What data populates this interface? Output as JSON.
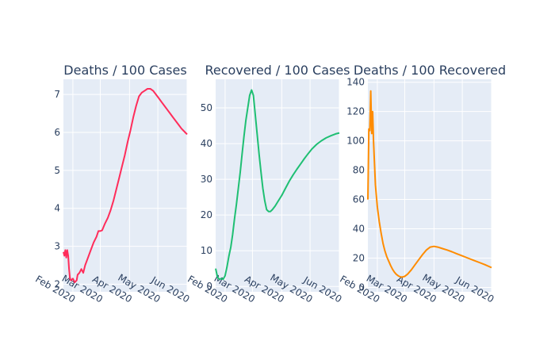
{
  "chart_data": [
    {
      "type": "line",
      "title": "Deaths / 100 Cases",
      "color": "#ff2c5a",
      "x_range": [
        "2020-01-22",
        "2020-06-01"
      ],
      "ylim": [
        1.8,
        7.4
      ],
      "y_ticks": [
        2,
        3,
        4,
        5,
        6,
        7
      ],
      "x_ticks": [
        "2020-02-01",
        "2020-03-01",
        "2020-04-01",
        "2020-05-01",
        "2020-06-01"
      ],
      "x_tick_labels": [
        "Feb 2020",
        "Mar 2020",
        "Apr 2020",
        "May 2020",
        "Jun 2020"
      ],
      "points": [
        [
          "2020-01-22",
          2.85
        ],
        [
          "2020-01-23",
          2.75
        ],
        [
          "2020-01-24",
          2.9
        ],
        [
          "2020-01-25",
          2.7
        ],
        [
          "2020-01-26",
          2.9
        ],
        [
          "2020-01-27",
          2.75
        ],
        [
          "2020-01-28",
          2.4
        ],
        [
          "2020-01-29",
          2.15
        ],
        [
          "2020-01-30",
          2.1
        ],
        [
          "2020-02-01",
          2.15
        ],
        [
          "2020-02-03",
          2.05
        ],
        [
          "2020-02-05",
          2.1
        ],
        [
          "2020-02-06",
          2.25
        ],
        [
          "2020-02-08",
          2.3
        ],
        [
          "2020-02-10",
          2.4
        ],
        [
          "2020-02-12",
          2.3
        ],
        [
          "2020-02-14",
          2.5
        ],
        [
          "2020-02-17",
          2.7
        ],
        [
          "2020-02-20",
          2.9
        ],
        [
          "2020-02-23",
          3.1
        ],
        [
          "2020-02-26",
          3.25
        ],
        [
          "2020-02-28",
          3.4
        ],
        [
          "2020-03-01",
          3.4
        ],
        [
          "2020-03-03",
          3.42
        ],
        [
          "2020-03-06",
          3.6
        ],
        [
          "2020-03-09",
          3.75
        ],
        [
          "2020-03-12",
          3.95
        ],
        [
          "2020-03-15",
          4.2
        ],
        [
          "2020-03-18",
          4.5
        ],
        [
          "2020-03-21",
          4.8
        ],
        [
          "2020-03-24",
          5.1
        ],
        [
          "2020-03-27",
          5.4
        ],
        [
          "2020-03-30",
          5.75
        ],
        [
          "2020-04-02",
          6.05
        ],
        [
          "2020-04-05",
          6.4
        ],
        [
          "2020-04-08",
          6.7
        ],
        [
          "2020-04-11",
          6.95
        ],
        [
          "2020-04-14",
          7.05
        ],
        [
          "2020-04-17",
          7.1
        ],
        [
          "2020-04-20",
          7.15
        ],
        [
          "2020-04-23",
          7.15
        ],
        [
          "2020-04-26",
          7.1
        ],
        [
          "2020-04-29",
          7.0
        ],
        [
          "2020-05-02",
          6.9
        ],
        [
          "2020-05-05",
          6.8
        ],
        [
          "2020-05-08",
          6.7
        ],
        [
          "2020-05-11",
          6.6
        ],
        [
          "2020-05-14",
          6.5
        ],
        [
          "2020-05-17",
          6.4
        ],
        [
          "2020-05-20",
          6.3
        ],
        [
          "2020-05-23",
          6.2
        ],
        [
          "2020-05-26",
          6.1
        ],
        [
          "2020-05-30",
          6.0
        ],
        [
          "2020-06-01",
          5.95
        ]
      ]
    },
    {
      "type": "line",
      "title": "Recovered / 100 Cases",
      "color": "#1fbf73",
      "x_range": [
        "2020-01-22",
        "2020-06-01"
      ],
      "ylim": [
        -1.5,
        58
      ],
      "y_ticks": [
        0,
        10,
        20,
        30,
        40,
        50
      ],
      "x_ticks": [
        "2020-02-01",
        "2020-03-01",
        "2020-04-01",
        "2020-05-01",
        "2020-06-01"
      ],
      "x_tick_labels": [
        "Feb 2020",
        "Mar 2020",
        "Apr 2020",
        "May 2020",
        "Jun 2020"
      ],
      "points": [
        [
          "2020-01-22",
          5.0
        ],
        [
          "2020-01-24",
          2.5
        ],
        [
          "2020-01-26",
          2.0
        ],
        [
          "2020-01-28",
          2.2
        ],
        [
          "2020-01-30",
          2.0
        ],
        [
          "2020-02-01",
          3.0
        ],
        [
          "2020-02-03",
          5.5
        ],
        [
          "2020-02-05",
          8.5
        ],
        [
          "2020-02-07",
          11.0
        ],
        [
          "2020-02-09",
          14.5
        ],
        [
          "2020-02-11",
          19.0
        ],
        [
          "2020-02-13",
          23.0
        ],
        [
          "2020-02-15",
          27.5
        ],
        [
          "2020-02-17",
          32.0
        ],
        [
          "2020-02-19",
          37.0
        ],
        [
          "2020-02-21",
          42.0
        ],
        [
          "2020-02-23",
          46.5
        ],
        [
          "2020-02-25",
          50.0
        ],
        [
          "2020-02-27",
          53.5
        ],
        [
          "2020-02-29",
          55.0
        ],
        [
          "2020-03-02",
          53.5
        ],
        [
          "2020-03-04",
          48.0
        ],
        [
          "2020-03-06",
          42.5
        ],
        [
          "2020-03-08",
          37.0
        ],
        [
          "2020-03-10",
          32.0
        ],
        [
          "2020-03-12",
          27.5
        ],
        [
          "2020-03-14",
          24.0
        ],
        [
          "2020-03-16",
          21.5
        ],
        [
          "2020-03-18",
          21.0
        ],
        [
          "2020-03-20",
          21.0
        ],
        [
          "2020-03-22",
          21.5
        ],
        [
          "2020-03-25",
          22.5
        ],
        [
          "2020-03-28",
          23.8
        ],
        [
          "2020-04-01",
          25.5
        ],
        [
          "2020-04-05",
          27.5
        ],
        [
          "2020-04-09",
          29.5
        ],
        [
          "2020-04-13",
          31.2
        ],
        [
          "2020-04-17",
          32.8
        ],
        [
          "2020-04-21",
          34.3
        ],
        [
          "2020-04-25",
          35.8
        ],
        [
          "2020-04-29",
          37.2
        ],
        [
          "2020-05-03",
          38.5
        ],
        [
          "2020-05-08",
          39.8
        ],
        [
          "2020-05-13",
          40.8
        ],
        [
          "2020-05-18",
          41.6
        ],
        [
          "2020-05-23",
          42.2
        ],
        [
          "2020-05-28",
          42.7
        ],
        [
          "2020-06-01",
          43.0
        ]
      ]
    },
    {
      "type": "line",
      "title": "Deaths / 100 Recovered",
      "color": "#ff8c00",
      "x_range": [
        "2020-01-22",
        "2020-06-01"
      ],
      "ylim": [
        -3,
        142
      ],
      "y_ticks": [
        0,
        20,
        40,
        60,
        80,
        100,
        120,
        140
      ],
      "x_ticks": [
        "2020-02-01",
        "2020-03-01",
        "2020-04-01",
        "2020-05-01",
        "2020-06-01"
      ],
      "x_tick_labels": [
        "Feb 2020",
        "Mar 2020",
        "Apr 2020",
        "May 2020",
        "Jun 2020"
      ],
      "points": [
        [
          "2020-01-22",
          60
        ],
        [
          "2020-01-23",
          108
        ],
        [
          "2020-01-24",
          107
        ],
        [
          "2020-01-25",
          134
        ],
        [
          "2020-01-26",
          105
        ],
        [
          "2020-01-27",
          120
        ],
        [
          "2020-01-28",
          100
        ],
        [
          "2020-01-29",
          85
        ],
        [
          "2020-01-30",
          70
        ],
        [
          "2020-02-01",
          55
        ],
        [
          "2020-02-03",
          45
        ],
        [
          "2020-02-05",
          37
        ],
        [
          "2020-02-07",
          30
        ],
        [
          "2020-02-09",
          25
        ],
        [
          "2020-02-11",
          21
        ],
        [
          "2020-02-13",
          18
        ],
        [
          "2020-02-15",
          15
        ],
        [
          "2020-02-17",
          12.5
        ],
        [
          "2020-02-19",
          10.5
        ],
        [
          "2020-02-21",
          9
        ],
        [
          "2020-02-23",
          8
        ],
        [
          "2020-02-25",
          7.3
        ],
        [
          "2020-02-27",
          7
        ],
        [
          "2020-03-01",
          7.5
        ],
        [
          "2020-03-04",
          9
        ],
        [
          "2020-03-08",
          12
        ],
        [
          "2020-03-12",
          15.5
        ],
        [
          "2020-03-16",
          19
        ],
        [
          "2020-03-20",
          22.5
        ],
        [
          "2020-03-24",
          25.5
        ],
        [
          "2020-03-28",
          27.5
        ],
        [
          "2020-04-01",
          28
        ],
        [
          "2020-04-05",
          27.5
        ],
        [
          "2020-04-10",
          26.5
        ],
        [
          "2020-04-15",
          25.5
        ],
        [
          "2020-04-20",
          24.3
        ],
        [
          "2020-04-25",
          23
        ],
        [
          "2020-05-01",
          21.5
        ],
        [
          "2020-05-07",
          20
        ],
        [
          "2020-05-13",
          18.5
        ],
        [
          "2020-05-19",
          17
        ],
        [
          "2020-05-25",
          15.5
        ],
        [
          "2020-06-01",
          13.5
        ]
      ]
    }
  ]
}
